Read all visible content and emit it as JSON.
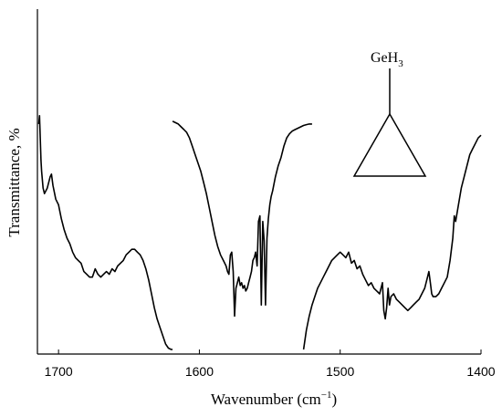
{
  "chart_data": {
    "type": "line",
    "title": "",
    "xlabel_main": "Wavenumber (cm",
    "xlabel_sup": "−1",
    "xlabel_close": ")",
    "ylabel": "Transmittance, %",
    "x_reversed": true,
    "xlim": [
      1715,
      1400
    ],
    "ylim": [
      0,
      100
    ],
    "y_ticks_labeled": false,
    "grid": false,
    "x_ticks": [
      1700,
      1600,
      1500,
      1400
    ],
    "x_tick_labels": [
      "1700",
      "1600",
      "1500",
      "1400"
    ],
    "line_color": "#000000",
    "segments": [
      {
        "x": [
          1714,
          1713.5,
          1713,
          1712.5,
          1712,
          1711,
          1710,
          1708,
          1706,
          1705,
          1704,
          1702,
          1700,
          1698,
          1696,
          1694,
          1692,
          1690,
          1688,
          1686,
          1684,
          1682,
          1680,
          1678,
          1676,
          1674,
          1672,
          1670,
          1668,
          1666,
          1664,
          1662,
          1660,
          1658,
          1656,
          1654,
          1652,
          1650,
          1648,
          1646,
          1644,
          1642,
          1640,
          1638,
          1636,
          1634,
          1632,
          1630,
          1628,
          1626,
          1624,
          1622,
          1620,
          1619
        ],
        "y": [
          81,
          84,
          76,
          68,
          64,
          58,
          56,
          58,
          62,
          63,
          59,
          54,
          52,
          47,
          43,
          40,
          38,
          35,
          33,
          32,
          31,
          28,
          27,
          26,
          26,
          29,
          27,
          26,
          27,
          28,
          27,
          29,
          28,
          30,
          31,
          32,
          34,
          35,
          36,
          36,
          35,
          34,
          32,
          29,
          25,
          20,
          15,
          11,
          8,
          5,
          2,
          0.5,
          0,
          0
        ]
      },
      {
        "x": [
          1619,
          1617,
          1615,
          1613,
          1611,
          1609,
          1607,
          1605,
          1603,
          1601,
          1599,
          1597,
          1595,
          1593,
          1591,
          1589,
          1587,
          1585,
          1583,
          1581,
          1580,
          1579,
          1578,
          1577,
          1576,
          1575,
          1574,
          1573,
          1572,
          1571,
          1570,
          1569,
          1568,
          1567,
          1566,
          1565,
          1564,
          1563,
          1562,
          1561,
          1560,
          1559,
          1558,
          1557,
          1556,
          1555,
          1554,
          1553,
          1552,
          1551,
          1550,
          1549,
          1548,
          1546,
          1544,
          1542,
          1540,
          1538,
          1536,
          1534,
          1532,
          1530,
          1528,
          1526,
          1524,
          1522,
          1520
        ],
        "y": [
          82,
          81.5,
          81,
          80,
          79,
          78,
          76,
          73,
          70,
          67,
          64,
          60,
          56,
          51,
          46,
          41,
          37,
          34,
          32,
          30,
          28,
          27,
          34,
          35,
          28,
          12,
          22,
          24,
          26,
          23,
          24,
          22,
          23,
          21,
          22,
          24,
          26,
          28,
          32,
          33,
          35,
          30,
          46,
          48,
          16,
          46,
          39,
          16,
          40,
          47,
          52,
          55,
          57,
          62,
          66,
          69,
          73,
          76,
          77.5,
          78.5,
          79,
          79.5,
          80,
          80.5,
          80.8,
          81,
          81
        ]
      },
      {
        "x": [
          1526,
          1524,
          1522,
          1520,
          1518,
          1516,
          1514,
          1512,
          1510,
          1508,
          1506,
          1504,
          1502,
          1500,
          1498,
          1496,
          1494,
          1492,
          1490,
          1488,
          1486,
          1484,
          1482,
          1480,
          1478,
          1476,
          1474,
          1472,
          1470,
          1469,
          1468,
          1467,
          1466,
          1465,
          1464,
          1462,
          1460,
          1458,
          1456,
          1454,
          1452,
          1450,
          1448,
          1446,
          1444,
          1442,
          1440,
          1438,
          1437,
          1436,
          1435,
          1434,
          1432,
          1430,
          1428,
          1426,
          1424,
          1422,
          1420,
          1419,
          1418,
          1416,
          1414,
          1412,
          1410,
          1408,
          1406,
          1404,
          1402,
          1400
        ],
        "y": [
          0,
          7,
          12,
          16,
          19,
          22,
          24,
          26,
          28,
          30,
          32,
          33,
          34,
          35,
          34,
          33,
          35,
          31,
          32,
          29,
          30,
          27,
          25,
          23,
          24,
          22,
          21,
          20,
          24,
          14,
          11,
          15,
          22,
          16,
          19,
          20,
          18,
          17,
          16,
          15,
          14,
          15,
          16,
          17,
          18,
          20,
          22,
          26,
          28,
          24,
          20,
          19,
          19,
          20,
          22,
          24,
          26,
          32,
          40,
          48,
          46,
          52,
          58,
          62,
          66,
          70,
          72,
          74,
          76,
          77
        ]
      }
    ]
  },
  "inset": {
    "label_main": "GeH",
    "label_sub": "3"
  }
}
